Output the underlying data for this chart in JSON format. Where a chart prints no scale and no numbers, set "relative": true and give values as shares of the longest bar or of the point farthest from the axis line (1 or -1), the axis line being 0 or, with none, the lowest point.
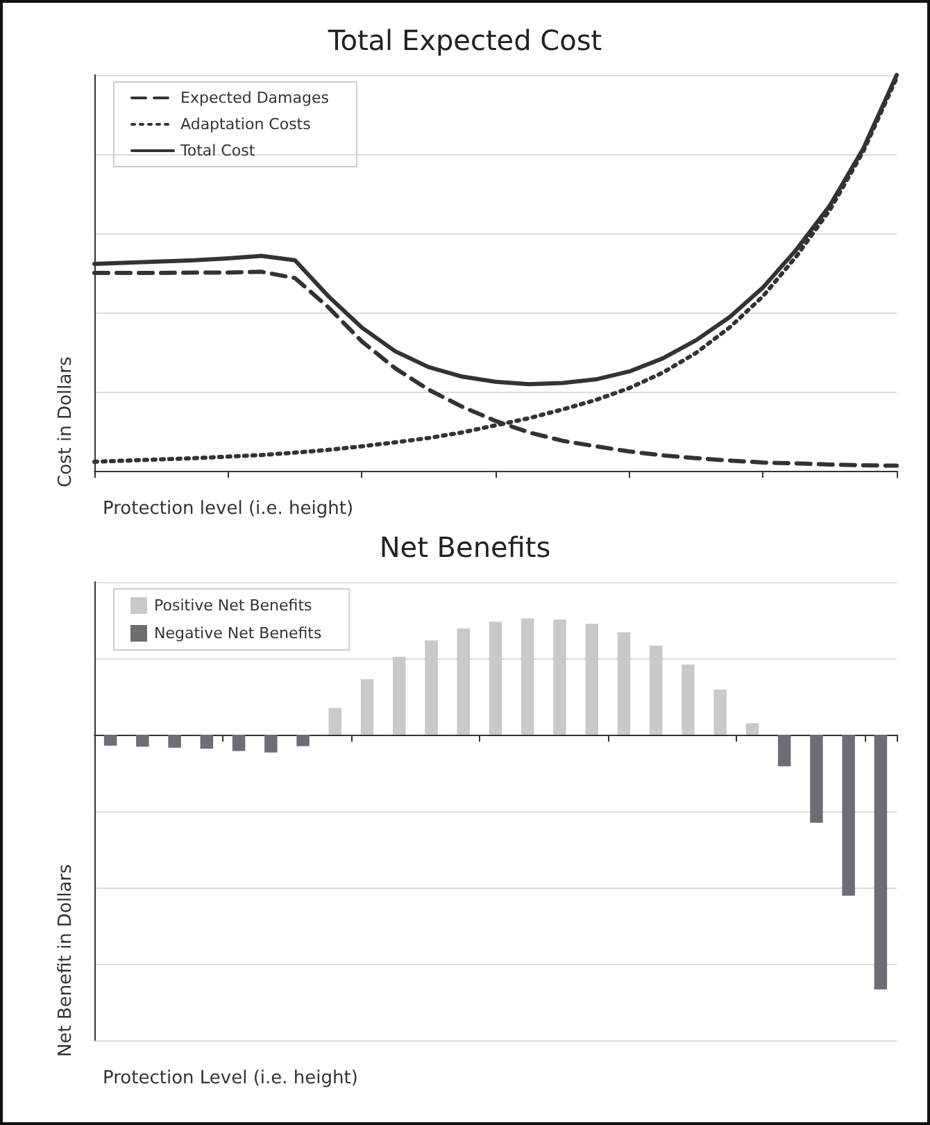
{
  "chart_data": [
    {
      "type": "line",
      "title": "Total Expected Cost",
      "xlabel": "Protection level (i.e. height)",
      "ylabel": "Cost in Dollars",
      "relative": true,
      "grid": "y",
      "legend": "top left",
      "marker": "none",
      "categories": [
        null,
        null,
        null,
        null,
        null,
        null,
        null,
        null,
        null,
        null,
        null,
        null,
        null,
        null,
        null,
        null,
        null,
        null,
        null,
        null,
        null,
        null,
        null,
        null,
        null
      ],
      "series": [
        {
          "name": "Expected Damages",
          "color": "#333333",
          "line_style": "dashed",
          "values": [
            0.5,
            0.5,
            0.5,
            0.501,
            0.501,
            0.503,
            0.487,
            0.413,
            0.327,
            0.259,
            0.205,
            0.162,
            0.126,
            0.097,
            0.076,
            0.062,
            0.049,
            0.039,
            0.032,
            0.026,
            0.021,
            0.019,
            0.016,
            0.014,
            0.013
          ]
        },
        {
          "name": "Adaptation Costs",
          "color": "#333333",
          "line_style": "dotted",
          "values": [
            0.023,
            0.026,
            0.029,
            0.032,
            0.036,
            0.04,
            0.046,
            0.053,
            0.062,
            0.072,
            0.083,
            0.097,
            0.115,
            0.133,
            0.155,
            0.179,
            0.209,
            0.248,
            0.298,
            0.362,
            0.441,
            0.542,
            0.659,
            0.807,
            0.993
          ]
        },
        {
          "name": "Total Cost",
          "color": "#333333",
          "line_style": "solid",
          "values": [
            0.523,
            0.526,
            0.529,
            0.532,
            0.537,
            0.543,
            0.532,
            0.441,
            0.362,
            0.302,
            0.262,
            0.238,
            0.225,
            0.219,
            0.222,
            0.231,
            0.251,
            0.284,
            0.33,
            0.388,
            0.463,
            0.559,
            0.67,
            0.814,
            1
          ]
        }
      ]
    },
    {
      "type": "bar",
      "title": "Net Benefits",
      "xlabel": "Protection Level (i.e. height)",
      "ylabel": "Net Benefit in Dollars",
      "relative": true,
      "grid": "y",
      "legend": "top left",
      "stacked": true,
      "categories": [
        null,
        null,
        null,
        null,
        null,
        null,
        null,
        null,
        null,
        null,
        null,
        null,
        null,
        null,
        null,
        null,
        null,
        null,
        null,
        null,
        null,
        null,
        null,
        null,
        null
      ],
      "series": [
        {
          "name": "Positive Net Benefits",
          "color": "#c8c9cb",
          "values": [
            null,
            null,
            null,
            null,
            null,
            null,
            null,
            0.105,
            0.218,
            0.306,
            0.37,
            0.417,
            0.444,
            0.457,
            0.453,
            0.436,
            0.402,
            0.35,
            0.276,
            0.177,
            0.045,
            null,
            null,
            null,
            null
          ]
        },
        {
          "name": "Negative Net Benefits",
          "color": "#6d6e71",
          "values": [
            -0.043,
            -0.047,
            -0.051,
            -0.055,
            -0.064,
            -0.07,
            -0.045,
            null,
            null,
            null,
            null,
            null,
            null,
            null,
            null,
            null,
            null,
            null,
            null,
            null,
            null,
            -0.124,
            -0.346,
            -0.632,
            -1
          ]
        }
      ]
    }
  ]
}
